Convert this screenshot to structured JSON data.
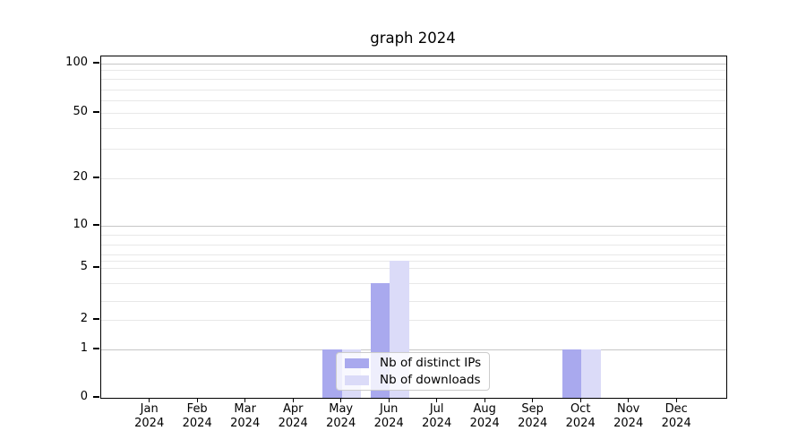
{
  "title": "graph 2024",
  "chart_data": {
    "type": "bar",
    "title": "graph 2024",
    "xlabel": "",
    "ylabel": "",
    "year": "2024",
    "categories": [
      "Jan",
      "Feb",
      "Mar",
      "Apr",
      "May",
      "Jun",
      "Jul",
      "Aug",
      "Sep",
      "Oct",
      "Nov",
      "Dec"
    ],
    "series": [
      {
        "name": "Nb of distinct IPs",
        "color": "#a9a9ee",
        "values": [
          0,
          0,
          0,
          0,
          1,
          4,
          0,
          0,
          0,
          1,
          0,
          0
        ]
      },
      {
        "name": "Nb of downloads",
        "color": "#dbdbf8",
        "values": [
          0,
          0,
          0,
          0,
          1,
          6,
          0,
          0,
          0,
          1,
          0,
          0
        ]
      }
    ],
    "yscale": "log-like (compressed below 1, 0 shown)",
    "y_tick_labels": [
      0,
      1,
      2,
      5,
      10,
      20,
      50,
      100
    ],
    "ylim": [
      0,
      110
    ],
    "grid": "horizontal only, minor log gridlines",
    "legend_position": "inside bottom-center"
  }
}
